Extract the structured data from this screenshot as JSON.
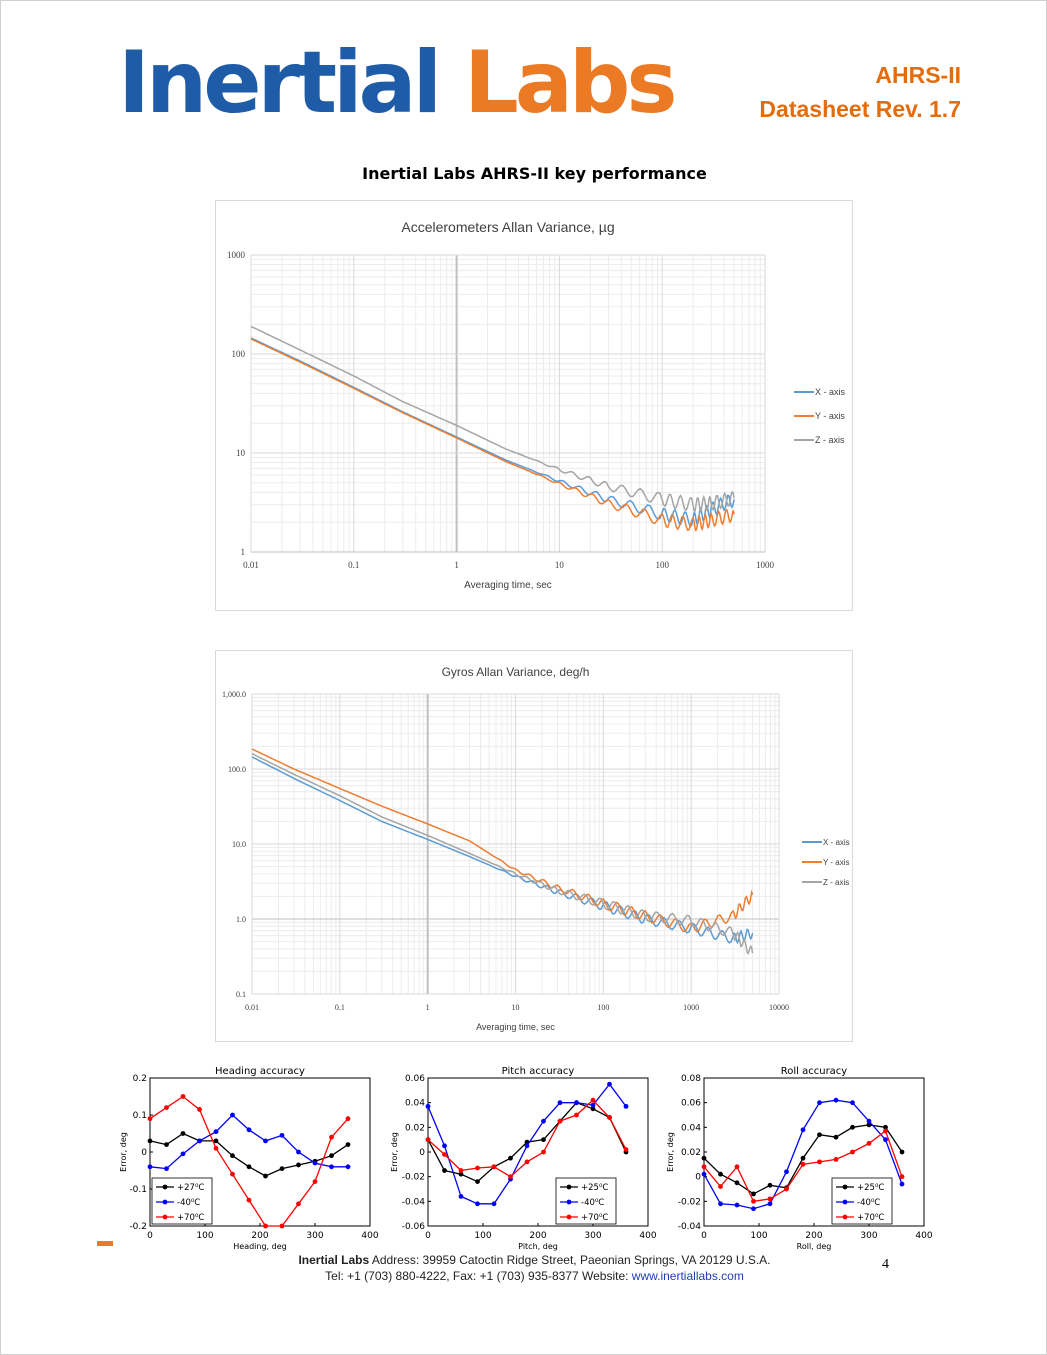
{
  "header": {
    "logo_part1": "Inertial",
    "logo_part2": "Labs",
    "product": "AHRS-II",
    "revision": "Datasheet Rev. 1.7"
  },
  "section_title": "Inertial Labs AHRS-II key performance",
  "footer": {
    "line1_bold": "Inertial Labs",
    "line1_rest": " Address: 39959 Catoctin Ridge Street, Paeonian Springs, VA 20129 U.S.A.",
    "line2_text": "Tel: +1 (703) 880-4222, Fax: +1 (703) 935-8377 Website: ",
    "line2_link": "www.inertiallabs.com",
    "page_number": "4"
  },
  "colors": {
    "logo_blue": "#1f5ca8",
    "logo_orange": "#ec7a25",
    "series_blue": "#5b9bd5",
    "series_orange": "#ed7d31",
    "series_gray": "#a5a5a5"
  },
  "chart_data": [
    {
      "type": "line",
      "title": "Accelerometers Allan Variance, µg",
      "xlabel": "Averaging time, sec",
      "ylabel": "",
      "xscale": "log",
      "yscale": "log",
      "xlim": [
        0.01,
        1000
      ],
      "ylim": [
        1,
        1000
      ],
      "x_ticks": [
        "0.01",
        "0.1",
        "1",
        "10",
        "100",
        "1000"
      ],
      "y_ticks": [
        "1",
        "10",
        "100",
        "1000"
      ],
      "legend": "right",
      "grid": true,
      "series": [
        {
          "name": "X - axis",
          "x": [
            0.01,
            0.03,
            0.1,
            0.3,
            1,
            3,
            10,
            30,
            100,
            200,
            300,
            500
          ],
          "y": [
            145,
            85,
            46,
            26,
            14.5,
            8.5,
            5.2,
            3.4,
            2.4,
            2.1,
            2.7,
            3.4
          ]
        },
        {
          "name": "Y - axis",
          "x": [
            0.01,
            0.03,
            0.1,
            0.3,
            1,
            3,
            10,
            30,
            100,
            200,
            300,
            500
          ],
          "y": [
            142,
            83,
            45,
            25.5,
            14.2,
            8.2,
            4.9,
            3.1,
            2.1,
            1.9,
            2.1,
            2.4
          ]
        },
        {
          "name": "Z - axis",
          "x": [
            0.01,
            0.03,
            0.1,
            0.3,
            1,
            3,
            10,
            30,
            100,
            200,
            300,
            500
          ],
          "y": [
            190,
            110,
            60,
            33,
            19,
            11,
            6.8,
            4.6,
            3.4,
            3.0,
            3.1,
            3.5
          ]
        }
      ]
    },
    {
      "type": "line",
      "title": "Gyros Allan Variance, deg/h",
      "xlabel": "Averaging time, sec",
      "ylabel": "",
      "xscale": "log",
      "yscale": "log",
      "xlim": [
        0.01,
        10000
      ],
      "ylim": [
        0.1,
        1000
      ],
      "x_ticks": [
        "0.01",
        "0.1",
        "1",
        "10",
        "100",
        "1000",
        "10000"
      ],
      "y_ticks": [
        "0.1",
        "1.0",
        "10.0",
        "100.0",
        "1,000.0"
      ],
      "legend": "right",
      "grid": true,
      "series": [
        {
          "name": "X - axis",
          "x": [
            0.01,
            0.03,
            0.1,
            0.3,
            1,
            3,
            10,
            30,
            100,
            300,
            1000,
            3000,
            5000
          ],
          "y": [
            145,
            75,
            38,
            20,
            11.5,
            6.8,
            3.7,
            2.3,
            1.5,
            1.0,
            0.75,
            0.55,
            0.65
          ]
        },
        {
          "name": "Y - axis",
          "x": [
            0.01,
            0.03,
            0.1,
            0.3,
            1,
            3,
            10,
            30,
            100,
            300,
            1000,
            3000,
            5000
          ],
          "y": [
            185,
            100,
            55,
            32,
            18.5,
            11,
            4.5,
            2.6,
            1.6,
            1.1,
            0.75,
            1.1,
            2.1
          ]
        },
        {
          "name": "Z - axis",
          "x": [
            0.01,
            0.03,
            0.1,
            0.3,
            1,
            3,
            10,
            30,
            100,
            300,
            1000,
            3000,
            5000
          ],
          "y": [
            160,
            85,
            44,
            23,
            13,
            7.5,
            4.0,
            2.4,
            1.6,
            1.1,
            0.95,
            0.65,
            0.35
          ]
        }
      ]
    },
    {
      "type": "line",
      "title": "Heading accuracy",
      "xlabel": "Heading, deg",
      "ylabel": "Error, deg",
      "xlim": [
        0,
        400
      ],
      "ylim": [
        -0.2,
        0.2
      ],
      "x_ticks": [
        "0",
        "100",
        "200",
        "300",
        "400"
      ],
      "y_ticks": [
        "-0.2",
        "-0.1",
        "0",
        "0.1",
        "0.2"
      ],
      "legend": "bottom-left",
      "grid": false,
      "x": [
        0,
        30,
        60,
        90,
        120,
        150,
        180,
        210,
        240,
        270,
        300,
        330,
        360
      ],
      "series": [
        {
          "name": "+27⁰C",
          "values": [
            0.03,
            0.02,
            0.05,
            0.03,
            0.03,
            -0.01,
            -0.04,
            -0.065,
            -0.045,
            -0.035,
            -0.025,
            -0.01,
            0.02
          ]
        },
        {
          "name": "-40⁰C",
          "values": [
            -0.04,
            -0.045,
            -0.005,
            0.03,
            0.055,
            0.1,
            0.06,
            0.03,
            0.045,
            0.0,
            -0.03,
            -0.04,
            -0.04
          ]
        },
        {
          "name": "+70⁰C",
          "values": [
            0.09,
            0.12,
            0.15,
            0.115,
            0.01,
            -0.06,
            -0.13,
            -0.2,
            -0.2,
            -0.14,
            -0.08,
            0.04,
            0.09
          ]
        }
      ]
    },
    {
      "type": "line",
      "title": "Pitch accuracy",
      "xlabel": "Pitch, deg",
      "ylabel": "Error, deg",
      "xlim": [
        0,
        400
      ],
      "ylim": [
        -0.06,
        0.06
      ],
      "x_ticks": [
        "0",
        "100",
        "200",
        "300",
        "400"
      ],
      "y_ticks": [
        "-0.06",
        "-0.04",
        "-0.02",
        "0",
        "0.02",
        "0.04",
        "0.06"
      ],
      "legend": "bottom-right",
      "grid": false,
      "x": [
        0,
        30,
        60,
        90,
        120,
        150,
        180,
        210,
        240,
        270,
        300,
        330,
        360
      ],
      "series": [
        {
          "name": "+25⁰C",
          "values": [
            0.01,
            -0.015,
            -0.018,
            -0.024,
            -0.012,
            -0.005,
            0.008,
            0.01,
            0.025,
            0.04,
            0.035,
            0.028,
            0.0
          ]
        },
        {
          "name": "-40⁰C",
          "values": [
            0.037,
            0.005,
            -0.036,
            -0.042,
            -0.042,
            -0.022,
            0.005,
            0.025,
            0.04,
            0.04,
            0.038,
            0.055,
            0.037
          ]
        },
        {
          "name": "+70⁰C",
          "values": [
            0.01,
            -0.002,
            -0.015,
            -0.013,
            -0.012,
            -0.02,
            -0.008,
            0.0,
            0.025,
            0.03,
            0.042,
            0.028,
            0.002
          ]
        }
      ]
    },
    {
      "type": "line",
      "title": "Roll accuracy",
      "xlabel": "Roll, deg",
      "ylabel": "Error, deg",
      "xlim": [
        0,
        400
      ],
      "ylim": [
        -0.04,
        0.08
      ],
      "x_ticks": [
        "0",
        "100",
        "200",
        "300",
        "400"
      ],
      "y_ticks": [
        "-0.04",
        "-0.02",
        "0",
        "0.02",
        "0.04",
        "0.06",
        "0.08"
      ],
      "legend": "bottom-right",
      "grid": false,
      "x": [
        0,
        30,
        60,
        90,
        120,
        150,
        180,
        210,
        240,
        270,
        300,
        330,
        360
      ],
      "series": [
        {
          "name": "+25⁰C",
          "values": [
            0.015,
            0.002,
            -0.005,
            -0.014,
            -0.007,
            -0.009,
            0.015,
            0.034,
            0.032,
            0.04,
            0.042,
            0.04,
            0.02
          ]
        },
        {
          "name": "-40⁰C",
          "values": [
            0.002,
            -0.022,
            -0.023,
            -0.026,
            -0.022,
            0.004,
            0.038,
            0.06,
            0.062,
            0.06,
            0.045,
            0.03,
            -0.006
          ]
        },
        {
          "name": "+70⁰C",
          "values": [
            0.008,
            -0.008,
            0.008,
            -0.02,
            -0.018,
            -0.01,
            0.01,
            0.012,
            0.014,
            0.02,
            0.027,
            0.037,
            0.0
          ]
        }
      ]
    }
  ]
}
